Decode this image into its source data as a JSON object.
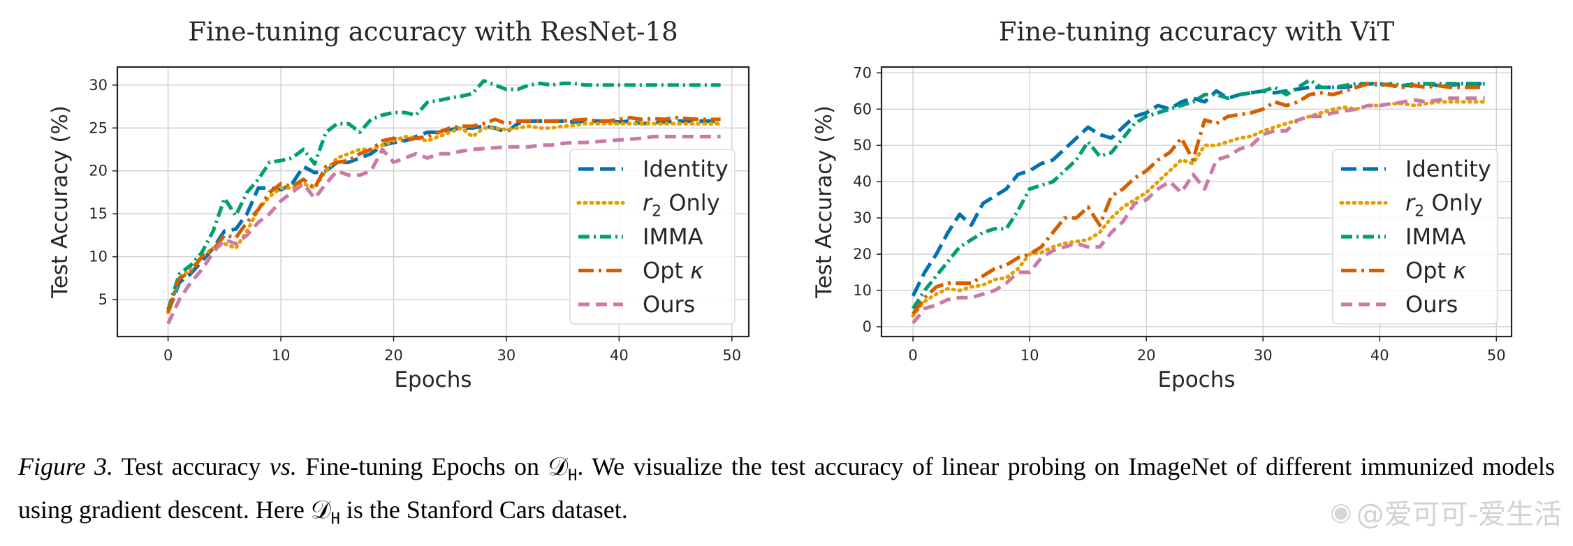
{
  "chart_data": [
    {
      "type": "line",
      "title": "Fine-tuning accuracy with ResNet-18",
      "xlabel": "Epochs",
      "ylabel": "Test Accuracy (%)",
      "xlim": [
        -4.5,
        51.5
      ],
      "ylim": [
        0.7,
        32.1
      ],
      "xticks": [
        0,
        10,
        20,
        30,
        40,
        50
      ],
      "yticks": [
        5,
        10,
        15,
        20,
        25,
        30
      ],
      "grid": true,
      "legend_position": "lower right",
      "x": [
        0,
        1,
        2,
        3,
        4,
        5,
        6,
        7,
        8,
        9,
        10,
        11,
        12,
        13,
        14,
        15,
        16,
        17,
        18,
        19,
        20,
        21,
        22,
        23,
        24,
        25,
        26,
        27,
        28,
        29,
        30,
        31,
        32,
        33,
        34,
        35,
        36,
        37,
        38,
        39,
        40,
        41,
        42,
        43,
        44,
        45,
        46,
        47,
        48,
        49
      ],
      "series": [
        {
          "name": "Identity",
          "color": "#0072b2",
          "dash": "dash_long",
          "values": [
            3.5,
            7.0,
            8.0,
            9.5,
            11.0,
            13.0,
            13.2,
            15.0,
            18.0,
            18.0,
            17.8,
            18.5,
            20.5,
            19.8,
            20.0,
            21.0,
            21.0,
            21.5,
            22.0,
            23.0,
            23.3,
            23.5,
            24.0,
            24.5,
            24.5,
            24.8,
            25.0,
            25.0,
            25.2,
            25.0,
            24.5,
            25.5,
            25.8,
            25.8,
            25.8,
            25.8,
            25.7,
            25.8,
            25.8,
            25.8,
            25.7,
            25.8,
            25.5,
            25.6,
            25.7,
            25.8,
            25.8,
            25.8,
            25.8,
            25.8
          ]
        },
        {
          "name": "r_2 Only",
          "color": "#e69f00",
          "dash": "dot",
          "values": [
            3.5,
            7.5,
            8.5,
            10.0,
            11.0,
            11.5,
            11.0,
            13.0,
            15.5,
            17.0,
            18.0,
            18.0,
            18.5,
            18.0,
            20.0,
            21.5,
            22.0,
            22.5,
            22.5,
            23.0,
            23.5,
            24.0,
            23.8,
            23.5,
            24.0,
            24.5,
            25.0,
            24.0,
            25.0,
            25.0,
            24.8,
            25.0,
            25.2,
            25.0,
            25.0,
            25.2,
            25.3,
            25.5,
            25.5,
            25.5,
            25.5,
            25.5,
            25.5,
            25.5,
            25.5,
            25.5,
            25.5,
            25.5,
            25.5,
            25.5
          ]
        },
        {
          "name": "IMMA",
          "color": "#009e73",
          "dash": "dashdot",
          "values": [
            3.8,
            8.0,
            9.0,
            10.5,
            13.0,
            16.8,
            14.8,
            17.5,
            19.0,
            21.0,
            21.2,
            21.5,
            22.5,
            20.8,
            24.5,
            25.5,
            25.5,
            24.5,
            26.0,
            26.5,
            26.8,
            26.8,
            26.5,
            28.0,
            28.2,
            28.5,
            28.7,
            29.0,
            30.5,
            30.0,
            29.5,
            29.5,
            30.0,
            30.2,
            30.0,
            30.2,
            30.2,
            30.0,
            30.0,
            30.0,
            30.0,
            30.0,
            30.0,
            30.0,
            30.0,
            30.0,
            30.0,
            30.0,
            30.0,
            30.0
          ]
        },
        {
          "name": "Opt κ",
          "color": "#d55e00",
          "dash": "dash_dot_long",
          "values": [
            3.5,
            7.5,
            8.2,
            10.0,
            10.8,
            12.5,
            12.2,
            14.0,
            15.5,
            17.5,
            18.5,
            18.2,
            19.0,
            18.0,
            20.5,
            21.0,
            21.2,
            22.0,
            22.5,
            23.5,
            23.8,
            23.5,
            23.8,
            24.0,
            24.5,
            25.0,
            25.2,
            25.2,
            25.5,
            26.0,
            25.5,
            25.8,
            25.8,
            25.8,
            25.8,
            25.8,
            25.9,
            26.0,
            25.8,
            25.8,
            26.0,
            26.2,
            26.0,
            26.1,
            26.0,
            26.2,
            26.1,
            26.0,
            26.0,
            26.0
          ]
        },
        {
          "name": "Ours",
          "color": "#cc79a7",
          "dash": "dash",
          "values": [
            2.2,
            5.0,
            7.0,
            8.5,
            10.5,
            12.0,
            11.5,
            12.5,
            14.0,
            15.0,
            16.5,
            17.5,
            18.5,
            16.8,
            18.5,
            20.0,
            19.5,
            19.5,
            20.0,
            22.5,
            21.0,
            21.5,
            22.0,
            21.5,
            22.0,
            22.0,
            22.3,
            22.5,
            22.6,
            22.7,
            22.8,
            22.8,
            22.8,
            23.0,
            23.0,
            23.2,
            23.3,
            23.3,
            23.4,
            23.5,
            23.6,
            23.7,
            23.8,
            24.0,
            24.0,
            24.0,
            24.0,
            24.0,
            24.0,
            24.0
          ]
        }
      ]
    },
    {
      "type": "line",
      "title": "Fine-tuning accuracy with ViT",
      "xlabel": "Epochs",
      "ylabel": "Test Accuracy (%)",
      "xlim": [
        -2.7,
        51.3
      ],
      "ylim": [
        -2.7,
        71.6
      ],
      "xticks": [
        0,
        10,
        20,
        30,
        40,
        50
      ],
      "yticks": [
        0,
        10,
        20,
        30,
        40,
        50,
        60,
        70
      ],
      "grid": true,
      "legend_position": "lower right",
      "x": [
        0,
        1,
        2,
        3,
        4,
        5,
        6,
        7,
        8,
        9,
        10,
        11,
        12,
        13,
        14,
        15,
        16,
        17,
        18,
        19,
        20,
        21,
        22,
        23,
        24,
        25,
        26,
        27,
        28,
        29,
        30,
        31,
        32,
        33,
        34,
        35,
        36,
        37,
        38,
        39,
        40,
        41,
        42,
        43,
        44,
        45,
        46,
        47,
        48,
        49
      ],
      "series": [
        {
          "name": "Identity",
          "color": "#0072b2",
          "dash": "dash_long",
          "values": [
            8.5,
            15.0,
            20.0,
            26.0,
            31.0,
            28.0,
            34.0,
            36.0,
            38.0,
            42.0,
            43.0,
            45.0,
            46.0,
            49.0,
            52.0,
            55.0,
            53.0,
            52.0,
            55.0,
            58.0,
            59.0,
            61.0,
            60.0,
            62.0,
            63.0,
            62.0,
            65.0,
            63.0,
            64.0,
            64.5,
            65.0,
            64.5,
            65.0,
            65.5,
            66.0,
            66.0,
            66.0,
            66.0,
            66.5,
            67.0,
            67.0,
            66.5,
            66.5,
            66.5,
            67.0,
            66.5,
            66.5,
            67.0,
            67.0,
            67.0
          ]
        },
        {
          "name": "r_2 Only",
          "color": "#e69f00",
          "dash": "dot",
          "values": [
            3.0,
            7.0,
            9.0,
            10.5,
            10.0,
            11.0,
            11.5,
            13.0,
            13.5,
            16.0,
            20.0,
            20.5,
            22.0,
            23.0,
            23.5,
            24.0,
            26.0,
            30.0,
            33.0,
            35.0,
            37.0,
            40.0,
            43.0,
            46.0,
            45.0,
            50.0,
            50.0,
            51.0,
            52.0,
            52.5,
            54.0,
            55.0,
            56.0,
            57.0,
            58.0,
            59.0,
            60.0,
            60.5,
            60.0,
            61.0,
            61.0,
            61.5,
            61.5,
            61.0,
            61.5,
            62.0,
            62.0,
            62.0,
            62.0,
            62.0
          ]
        },
        {
          "name": "IMMA",
          "color": "#009e73",
          "dash": "dashdot",
          "values": [
            5.0,
            10.0,
            14.0,
            18.0,
            22.0,
            24.0,
            26.0,
            27.0,
            27.0,
            32.0,
            38.0,
            39.0,
            40.0,
            43.0,
            46.0,
            51.0,
            47.0,
            48.0,
            52.0,
            56.0,
            58.0,
            59.0,
            60.0,
            61.0,
            62.0,
            64.0,
            64.0,
            63.0,
            64.0,
            64.5,
            65.0,
            66.0,
            64.0,
            66.0,
            68.0,
            66.0,
            66.0,
            66.5,
            67.0,
            67.0,
            66.5,
            67.0,
            66.5,
            67.0,
            67.0,
            67.0,
            67.0,
            67.0,
            67.0,
            67.0
          ]
        },
        {
          "name": "Opt κ",
          "color": "#d55e00",
          "dash": "dash_dot_long",
          "values": [
            3.5,
            8.0,
            11.0,
            12.0,
            12.0,
            12.0,
            14.0,
            16.0,
            17.0,
            19.0,
            20.0,
            22.0,
            26.0,
            30.0,
            30.0,
            33.0,
            28.0,
            36.0,
            38.0,
            41.0,
            43.0,
            46.0,
            48.0,
            52.0,
            46.0,
            57.0,
            56.0,
            58.0,
            58.5,
            59.0,
            60.0,
            62.0,
            61.0,
            62.0,
            64.0,
            64.5,
            64.0,
            65.0,
            66.0,
            67.0,
            67.0,
            66.5,
            66.0,
            66.5,
            66.0,
            66.5,
            66.0,
            66.0,
            66.0,
            66.0
          ]
        },
        {
          "name": "Ours",
          "color": "#cc79a7",
          "dash": "dash",
          "values": [
            1.0,
            5.0,
            6.0,
            7.5,
            8.0,
            8.0,
            9.0,
            10.0,
            12.0,
            15.0,
            15.0,
            19.0,
            21.0,
            22.0,
            23.0,
            22.0,
            22.0,
            26.0,
            29.0,
            34.0,
            35.0,
            38.0,
            40.0,
            37.0,
            42.0,
            38.0,
            46.0,
            47.0,
            49.0,
            50.0,
            53.0,
            54.0,
            54.0,
            57.0,
            58.0,
            58.0,
            59.0,
            59.5,
            60.0,
            61.0,
            61.0,
            61.5,
            62.0,
            62.5,
            62.0,
            62.5,
            63.0,
            63.0,
            63.0,
            63.0
          ]
        }
      ]
    }
  ],
  "caption": {
    "figure_label": "Figure 3.",
    "text_a": " Test accuracy ",
    "vs": "vs.",
    "text_b": " Fine-tuning Epochs on ",
    "dh_symbol": "𝒟",
    "dh_sub": "H",
    "text_c": ". We visualize the test accuracy of linear probing on ImageNet of different immunized models using gradient descent. Here ",
    "text_d": " is the Stanford Cars dataset."
  },
  "watermark": {
    "icon": "weibo-icon",
    "text": "@爱可可-爱生活"
  }
}
